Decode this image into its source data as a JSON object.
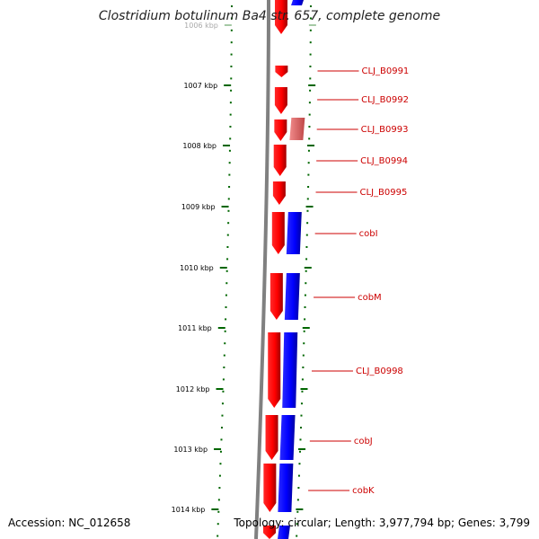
{
  "title": "Clostridium botulinum Ba4 str. 657, complete genome",
  "footer": {
    "accession": "Accession: NC_012658",
    "topology": "Topology: circular; Length: 3,977,794 bp; Genes: 3,799"
  },
  "ticks": [
    {
      "label": "1006 kbp",
      "faded": true
    },
    {
      "label": "1007 kbp"
    },
    {
      "label": "1008 kbp"
    },
    {
      "label": "1009 kbp"
    },
    {
      "label": "1010 kbp"
    },
    {
      "label": "1011 kbp"
    },
    {
      "label": "1012 kbp"
    },
    {
      "label": "1013 kbp"
    },
    {
      "label": "1014 kbp"
    }
  ],
  "genes": [
    {
      "label": "CLJ_B0991"
    },
    {
      "label": "CLJ_B0992"
    },
    {
      "label": "CLJ_B0993"
    },
    {
      "label": "CLJ_B0994"
    },
    {
      "label": "CLJ_B0995"
    },
    {
      "label": "cobI"
    },
    {
      "label": "cobM"
    },
    {
      "label": "CLJ_B0998"
    },
    {
      "label": "cobJ"
    },
    {
      "label": "cobK"
    }
  ],
  "colors": {
    "forward": "#ff0000",
    "reverse": "#0000ff",
    "label": "#cc0000",
    "tick": "#006600",
    "backbone": "#808080"
  }
}
